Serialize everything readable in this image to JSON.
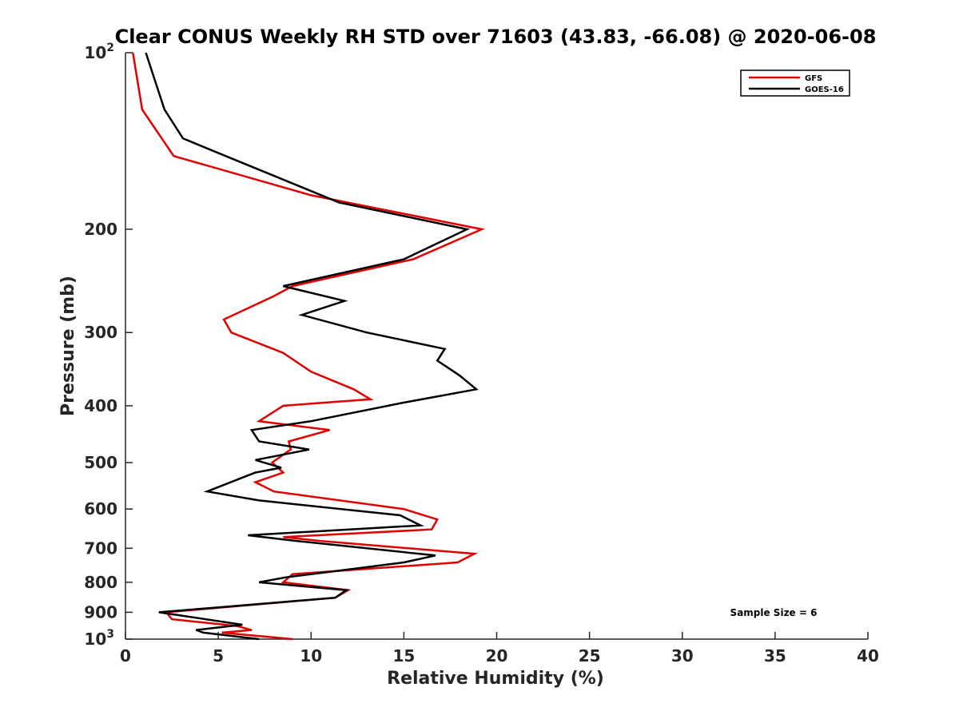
{
  "chart_data": {
    "type": "line",
    "title": "Clear CONUS Weekly RH STD over 71603 (43.83, -66.08) @ 2020-06-08",
    "xlabel": "Relative Humidity (%)",
    "ylabel": "Pressure (mb)",
    "xlim": [
      0,
      40
    ],
    "ylim": [
      100,
      1000
    ],
    "y_scale": "log",
    "y_reversed": true,
    "grid": false,
    "legend_position": "top-right",
    "x_ticks": [
      "0",
      "5",
      "10",
      "15",
      "20",
      "25",
      "30",
      "35",
      "40"
    ],
    "y_ticks": [
      {
        "value": 100,
        "base": "10",
        "exp": "2"
      },
      {
        "value": 200,
        "base": "200",
        "exp": ""
      },
      {
        "value": 300,
        "base": "300",
        "exp": ""
      },
      {
        "value": 400,
        "base": "400",
        "exp": ""
      },
      {
        "value": 500,
        "base": "500",
        "exp": ""
      },
      {
        "value": 600,
        "base": "600",
        "exp": ""
      },
      {
        "value": 700,
        "base": "700",
        "exp": ""
      },
      {
        "value": 800,
        "base": "800",
        "exp": ""
      },
      {
        "value": 900,
        "base": "900",
        "exp": ""
      },
      {
        "value": 1000,
        "base": "10",
        "exp": "3"
      }
    ],
    "annotation": "Sample Size = 6",
    "series": [
      {
        "name": "GFS",
        "color": "#e00000",
        "points": [
          [
            0.4,
            100
          ],
          [
            0.9,
            125
          ],
          [
            2.6,
            150
          ],
          [
            10,
            175
          ],
          [
            19.2,
            200
          ],
          [
            15.5,
            225
          ],
          [
            9,
            250
          ],
          [
            8,
            260
          ],
          [
            5.3,
            285
          ],
          [
            5.7,
            300
          ],
          [
            8.5,
            325
          ],
          [
            10,
            350
          ],
          [
            12.3,
            375
          ],
          [
            13.2,
            390
          ],
          [
            8.5,
            400
          ],
          [
            7.2,
            425
          ],
          [
            11,
            440
          ],
          [
            8.8,
            460
          ],
          [
            8.9,
            475
          ],
          [
            7.9,
            500
          ],
          [
            8.5,
            520
          ],
          [
            7,
            540
          ],
          [
            8,
            560
          ],
          [
            15,
            600
          ],
          [
            16.8,
            625
          ],
          [
            16.5,
            650
          ],
          [
            8.5,
            670
          ],
          [
            10.5,
            680
          ],
          [
            18.8,
            715
          ],
          [
            17.9,
            740
          ],
          [
            9,
            775
          ],
          [
            8.5,
            800
          ],
          [
            12,
            825
          ],
          [
            11.3,
            850
          ],
          [
            2.2,
            900
          ],
          [
            2.5,
            925
          ],
          [
            6,
            950
          ],
          [
            6.8,
            965
          ],
          [
            5.2,
            975
          ],
          [
            9,
            1000
          ]
        ]
      },
      {
        "name": "GOES-16",
        "color": "#000000",
        "points": [
          [
            1.1,
            100
          ],
          [
            2.1,
            125
          ],
          [
            3.1,
            140
          ],
          [
            5.4,
            150
          ],
          [
            11.5,
            180
          ],
          [
            18.4,
            200
          ],
          [
            15,
            225
          ],
          [
            8.5,
            250
          ],
          [
            11.8,
            265
          ],
          [
            9.5,
            280
          ],
          [
            13,
            300
          ],
          [
            17.2,
            320
          ],
          [
            16.8,
            335
          ],
          [
            18,
            355
          ],
          [
            18.9,
            375
          ],
          [
            15,
            395
          ],
          [
            10,
            425
          ],
          [
            6.8,
            440
          ],
          [
            7.2,
            460
          ],
          [
            9.9,
            475
          ],
          [
            7,
            495
          ],
          [
            8.4,
            510
          ],
          [
            7,
            520
          ],
          [
            4.4,
            560
          ],
          [
            7.2,
            580
          ],
          [
            14.8,
            615
          ],
          [
            15.9,
            640
          ],
          [
            6.6,
            665
          ],
          [
            9.2,
            680
          ],
          [
            16.7,
            720
          ],
          [
            15,
            740
          ],
          [
            8.6,
            785
          ],
          [
            7.2,
            800
          ],
          [
            11.9,
            825
          ],
          [
            11.3,
            850
          ],
          [
            1.8,
            900
          ],
          [
            6.3,
            945
          ],
          [
            3.8,
            965
          ],
          [
            4.2,
            975
          ],
          [
            7.2,
            1000
          ]
        ]
      }
    ]
  }
}
